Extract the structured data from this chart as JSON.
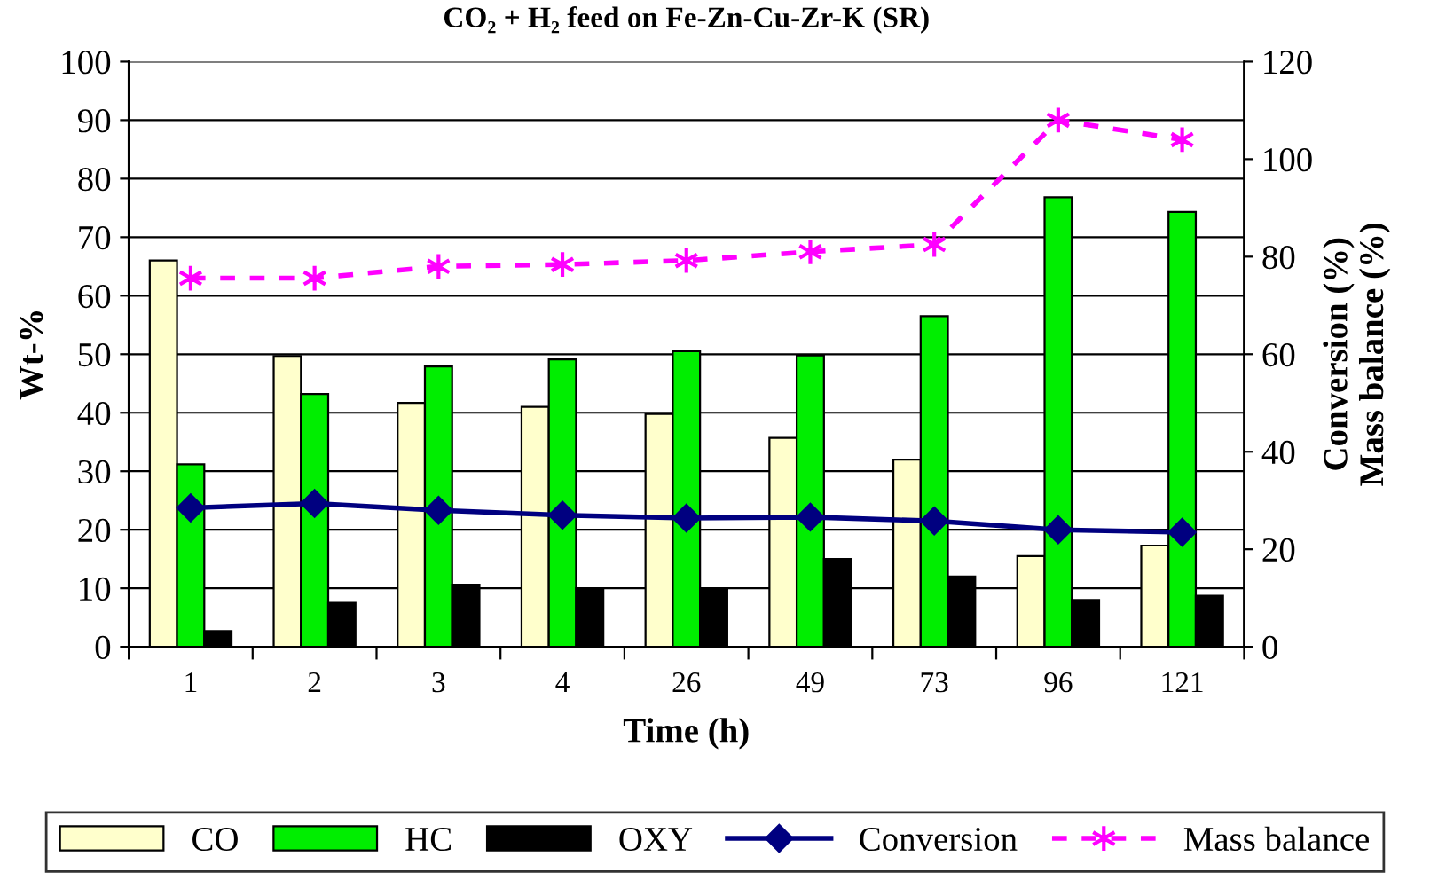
{
  "chart_data": {
    "type": "bar",
    "title": "CO₂ + H₂ feed on Fe-Zn-Cu-Zr-K (SR)",
    "xlabel": "Time (h)",
    "ylabel": "Wt-%",
    "y2label": "Conversion (%)\nMass balance (%)",
    "categories": [
      "1",
      "2",
      "3",
      "4",
      "26",
      "49",
      "73",
      "96",
      "121"
    ],
    "series": [
      {
        "name": "CO",
        "color": "#ffffcc",
        "values": [
          66,
          49.7,
          41.7,
          41,
          39.8,
          35.7,
          32,
          15.5,
          17.3
        ]
      },
      {
        "name": "HC",
        "color": "#00ee00",
        "values": [
          31.2,
          43.2,
          47.9,
          49.1,
          50.5,
          49.8,
          56.5,
          76.8,
          74.3
        ]
      },
      {
        "name": "OXY",
        "color": "#000000",
        "values": [
          2.7,
          7.5,
          10.6,
          10,
          10,
          15,
          12,
          8,
          8.7
        ]
      },
      {
        "name": "Conversion",
        "type": "line",
        "axis": "y2",
        "color": "#000080",
        "marker": "diamond",
        "line_style": "solid",
        "values": [
          28.5,
          29.4,
          28,
          27,
          26.4,
          26.6,
          25.8,
          24,
          23.5
        ]
      },
      {
        "name": "Mass balance",
        "type": "line",
        "axis": "y2",
        "color": "#ff00ff",
        "marker": "cross",
        "line_style": "dashed",
        "values": [
          75.6,
          75.6,
          78,
          78.4,
          79.2,
          81,
          82.5,
          108,
          104
        ]
      }
    ],
    "ylim": [
      0,
      100
    ],
    "yticks": [
      0,
      10,
      20,
      30,
      40,
      50,
      60,
      70,
      80,
      90,
      100
    ],
    "y2lim": [
      0,
      120
    ],
    "y2ticks": [
      0,
      20,
      40,
      60,
      80,
      100,
      120
    ],
    "grid": "y",
    "legend": "bottom"
  }
}
